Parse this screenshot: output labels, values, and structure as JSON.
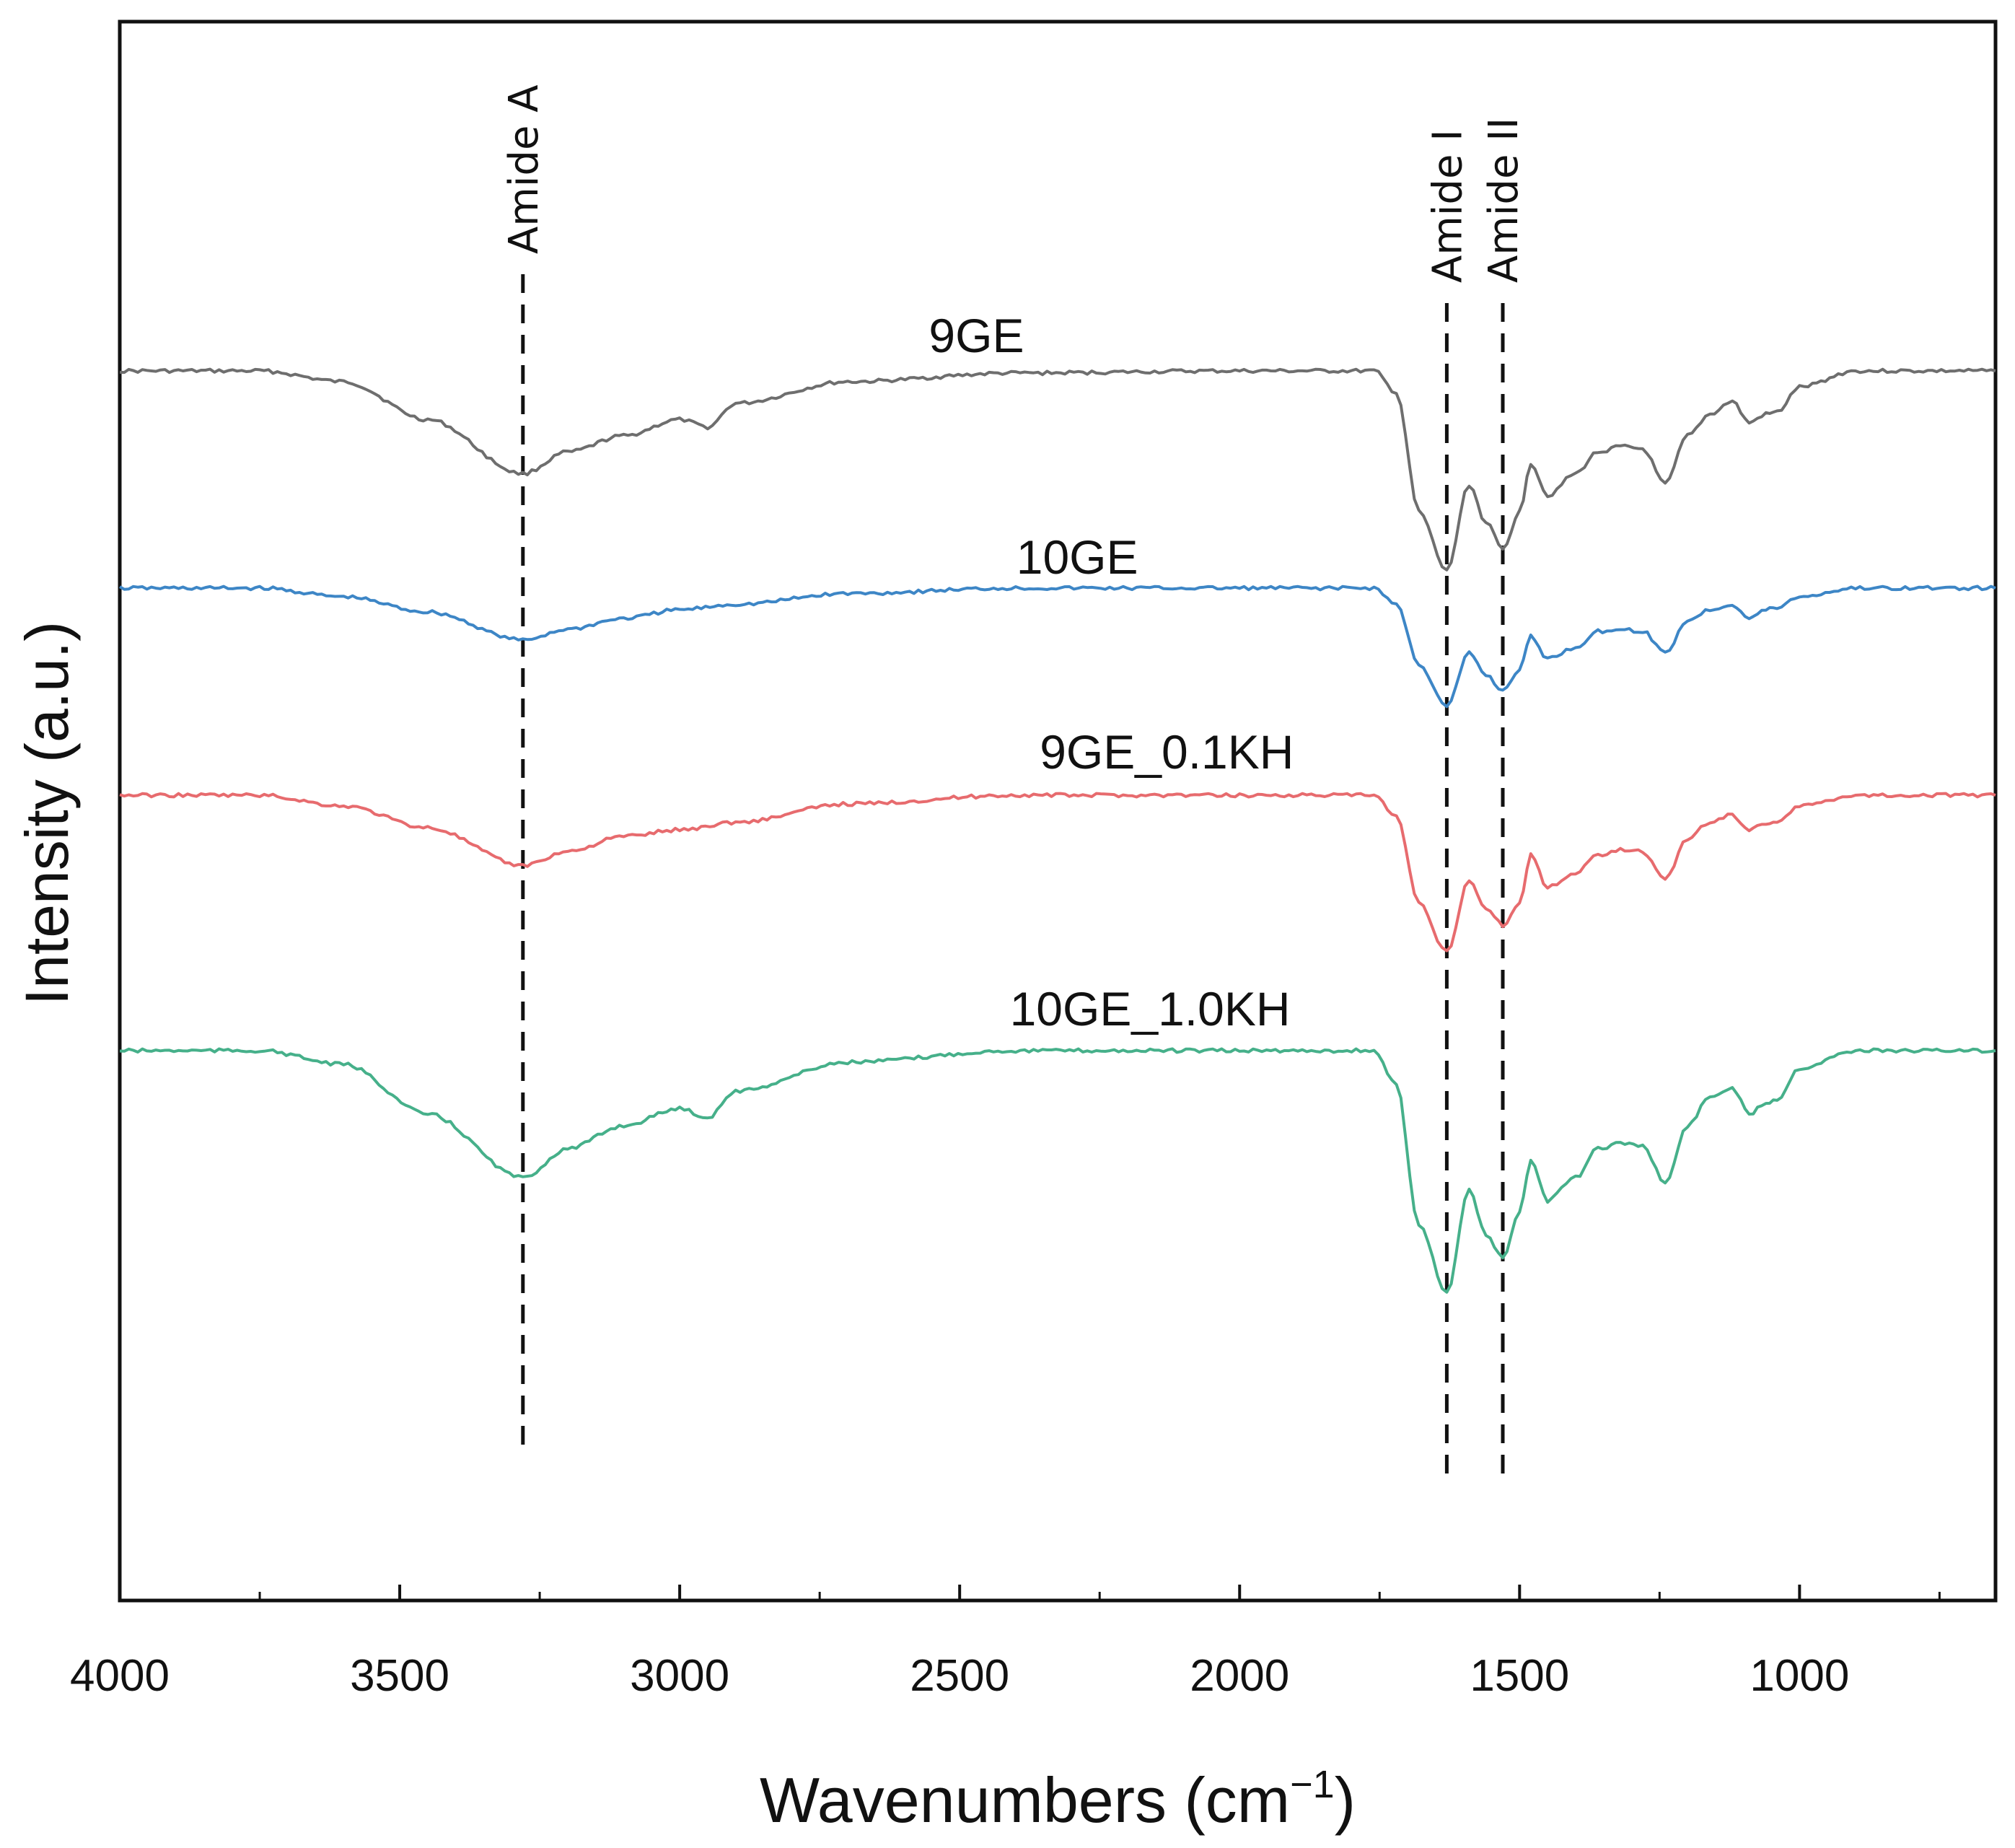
{
  "chart_data": {
    "type": "line",
    "title": "",
    "xlabel": "Wavenumbers (cm",
    "xlabel_sup": "−1",
    "xlabel_close": ")",
    "ylabel": "Intensity (a.u.)",
    "xlim": [
      4000,
      650
    ],
    "x_reversed": true,
    "xticks": [
      4000,
      3500,
      3000,
      2500,
      2000,
      1500,
      1000
    ],
    "xtick_labels": [
      "4000",
      "3500",
      "3000",
      "2500",
      "2000",
      "1500",
      "1000"
    ],
    "minor_xticks": [
      3750,
      3250,
      2750,
      2250,
      1750,
      1250,
      750
    ],
    "y_ticks_shown": false,
    "grid": false,
    "annotations": [
      {
        "label": "Amide A",
        "x": 3280
      },
      {
        "label": "Amide I",
        "x": 1630
      },
      {
        "label": "Amide II",
        "x": 1530
      }
    ],
    "series": [
      {
        "name": "9GE",
        "color": "#6e6e6e",
        "label_x": 2470,
        "points": [
          [
            4000,
            0
          ],
          [
            3750,
            0
          ],
          [
            3600,
            -0.1
          ],
          [
            3450,
            -0.45
          ],
          [
            3280,
            -0.95
          ],
          [
            3200,
            -0.75
          ],
          [
            3100,
            -0.6
          ],
          [
            3000,
            -0.45
          ],
          [
            2950,
            -0.52
          ],
          [
            2900,
            -0.3
          ],
          [
            2700,
            -0.1
          ],
          [
            2400,
            -0.02
          ],
          [
            2000,
            0
          ],
          [
            1760,
            0
          ],
          [
            1720,
            -0.2
          ],
          [
            1680,
            -1.3
          ],
          [
            1630,
            -1.85
          ],
          [
            1590,
            -1.05
          ],
          [
            1560,
            -1.4
          ],
          [
            1530,
            -1.65
          ],
          [
            1500,
            -1.3
          ],
          [
            1480,
            -0.85
          ],
          [
            1450,
            -1.15
          ],
          [
            1400,
            -0.95
          ],
          [
            1360,
            -0.75
          ],
          [
            1320,
            -0.7
          ],
          [
            1280,
            -0.72
          ],
          [
            1240,
            -1.05
          ],
          [
            1200,
            -0.6
          ],
          [
            1160,
            -0.4
          ],
          [
            1120,
            -0.28
          ],
          [
            1090,
            -0.48
          ],
          [
            1060,
            -0.4
          ],
          [
            1040,
            -0.38
          ],
          [
            1000,
            -0.15
          ],
          [
            900,
            0
          ],
          [
            650,
            0
          ]
        ]
      },
      {
        "name": "10GE",
        "color": "#3d86c6",
        "label_x": 2290,
        "points": [
          [
            4000,
            0
          ],
          [
            3750,
            0
          ],
          [
            3600,
            -0.08
          ],
          [
            3450,
            -0.22
          ],
          [
            3280,
            -0.48
          ],
          [
            3200,
            -0.38
          ],
          [
            3100,
            -0.28
          ],
          [
            3000,
            -0.2
          ],
          [
            2900,
            -0.15
          ],
          [
            2700,
            -0.05
          ],
          [
            2400,
            0
          ],
          [
            2000,
            0
          ],
          [
            1760,
            0
          ],
          [
            1720,
            -0.15
          ],
          [
            1680,
            -0.7
          ],
          [
            1630,
            -1.1
          ],
          [
            1590,
            -0.6
          ],
          [
            1560,
            -0.8
          ],
          [
            1530,
            -0.95
          ],
          [
            1500,
            -0.75
          ],
          [
            1480,
            -0.45
          ],
          [
            1450,
            -0.65
          ],
          [
            1400,
            -0.55
          ],
          [
            1360,
            -0.4
          ],
          [
            1320,
            -0.38
          ],
          [
            1280,
            -0.4
          ],
          [
            1240,
            -0.6
          ],
          [
            1200,
            -0.3
          ],
          [
            1160,
            -0.2
          ],
          [
            1120,
            -0.15
          ],
          [
            1090,
            -0.28
          ],
          [
            1060,
            -0.2
          ],
          [
            1040,
            -0.18
          ],
          [
            1000,
            -0.08
          ],
          [
            900,
            0
          ],
          [
            650,
            0
          ]
        ]
      },
      {
        "name": "9GE_0.1KH",
        "color": "#e76b6e",
        "label_x": 2130,
        "points": [
          [
            4000,
            0
          ],
          [
            3750,
            0
          ],
          [
            3600,
            -0.1
          ],
          [
            3450,
            -0.3
          ],
          [
            3280,
            -0.65
          ],
          [
            3200,
            -0.52
          ],
          [
            3100,
            -0.38
          ],
          [
            3000,
            -0.32
          ],
          [
            2900,
            -0.25
          ],
          [
            2700,
            -0.08
          ],
          [
            2400,
            0
          ],
          [
            2000,
            0
          ],
          [
            1760,
            0
          ],
          [
            1720,
            -0.2
          ],
          [
            1680,
            -1.0
          ],
          [
            1630,
            -1.45
          ],
          [
            1590,
            -0.78
          ],
          [
            1560,
            -1.05
          ],
          [
            1530,
            -1.2
          ],
          [
            1500,
            -1.0
          ],
          [
            1480,
            -0.55
          ],
          [
            1450,
            -0.85
          ],
          [
            1400,
            -0.72
          ],
          [
            1360,
            -0.55
          ],
          [
            1320,
            -0.5
          ],
          [
            1280,
            -0.52
          ],
          [
            1240,
            -0.78
          ],
          [
            1200,
            -0.4
          ],
          [
            1160,
            -0.25
          ],
          [
            1120,
            -0.18
          ],
          [
            1090,
            -0.32
          ],
          [
            1060,
            -0.26
          ],
          [
            1040,
            -0.24
          ],
          [
            1000,
            -0.1
          ],
          [
            900,
            0
          ],
          [
            650,
            0
          ]
        ]
      },
      {
        "name": "10GE_1.0KH",
        "color": "#46b08a",
        "label_x": 2160,
        "points": [
          [
            4000,
            0
          ],
          [
            3750,
            0
          ],
          [
            3600,
            -0.12
          ],
          [
            3450,
            -0.55
          ],
          [
            3280,
            -1.1
          ],
          [
            3200,
            -0.85
          ],
          [
            3100,
            -0.65
          ],
          [
            3000,
            -0.5
          ],
          [
            2950,
            -0.58
          ],
          [
            2900,
            -0.35
          ],
          [
            2700,
            -0.1
          ],
          [
            2400,
            0
          ],
          [
            2000,
            0
          ],
          [
            1760,
            0
          ],
          [
            1720,
            -0.3
          ],
          [
            1680,
            -1.5
          ],
          [
            1630,
            -2.1
          ],
          [
            1590,
            -1.2
          ],
          [
            1560,
            -1.6
          ],
          [
            1530,
            -1.8
          ],
          [
            1500,
            -1.4
          ],
          [
            1480,
            -0.95
          ],
          [
            1450,
            -1.3
          ],
          [
            1400,
            -1.1
          ],
          [
            1360,
            -0.85
          ],
          [
            1320,
            -0.8
          ],
          [
            1280,
            -0.82
          ],
          [
            1240,
            -1.15
          ],
          [
            1200,
            -0.65
          ],
          [
            1160,
            -0.4
          ],
          [
            1120,
            -0.32
          ],
          [
            1090,
            -0.55
          ],
          [
            1060,
            -0.45
          ],
          [
            1040,
            -0.42
          ],
          [
            1000,
            -0.15
          ],
          [
            900,
            0
          ],
          [
            650,
            0
          ]
        ]
      }
    ]
  }
}
